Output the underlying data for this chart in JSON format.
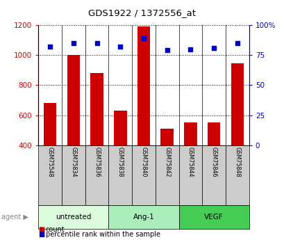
{
  "title": "GDS1922 / 1372556_at",
  "samples": [
    "GSM75548",
    "GSM75834",
    "GSM75836",
    "GSM75838",
    "GSM75840",
    "GSM75842",
    "GSM75844",
    "GSM75846",
    "GSM75848"
  ],
  "counts": [
    680,
    1000,
    880,
    630,
    1190,
    510,
    550,
    550,
    945
  ],
  "percentiles": [
    82,
    85,
    85,
    82,
    89,
    79,
    80,
    81,
    85
  ],
  "groups": [
    {
      "label": "untreated",
      "start": 0,
      "end": 3,
      "color": "#ddfcdd"
    },
    {
      "label": "Ang-1",
      "start": 3,
      "end": 6,
      "color": "#aaeebb"
    },
    {
      "label": "VEGF",
      "start": 6,
      "end": 9,
      "color": "#44cc55"
    }
  ],
  "bar_color": "#cc0000",
  "dot_color": "#0000cc",
  "ymin": 400,
  "ymax": 1200,
  "yticks": [
    400,
    600,
    800,
    1000,
    1200
  ],
  "y2min": 0,
  "y2max": 100,
  "y2ticks": [
    0,
    25,
    50,
    75,
    100
  ],
  "y2ticklabels": [
    "0",
    "25",
    "50",
    "75",
    "100%"
  ],
  "legend_count_label": "count",
  "legend_pct_label": "percentile rank within the sample",
  "label_area_color": "#cccccc"
}
